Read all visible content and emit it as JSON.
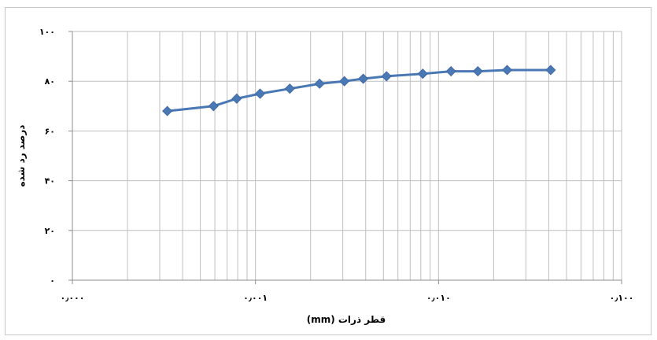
{
  "chart_data": {
    "type": "line",
    "xscale": "log",
    "xlim": [
      0.0001,
      0.1
    ],
    "ylim": [
      0,
      100
    ],
    "ystep": 20,
    "xlabel": "قطر ذرات (mm)",
    "ylabel": "درصد رد شده",
    "x_tick_labels": [
      "۰٫۰۰۰",
      "۰٫۰۰۱",
      "۰٫۰۱۰",
      "۰٫۱۰۰"
    ],
    "y_tick_labels": [
      "۰",
      "۲۰",
      "۴۰",
      "۶۰",
      "۸۰",
      "۱۰۰"
    ],
    "grid": true,
    "legend": "none",
    "series": [
      {
        "color": "#4a78b5",
        "marker": "diamond",
        "x": [
          0.00033,
          0.00059,
          0.00079,
          0.00106,
          0.00154,
          0.00224,
          0.00306,
          0.00388,
          0.0052,
          0.0082,
          0.0117,
          0.0164,
          0.0237,
          0.041
        ],
        "y": [
          68,
          70,
          73,
          75,
          77,
          79,
          80,
          81,
          82,
          83,
          84,
          84,
          84.5,
          84.5
        ]
      }
    ]
  }
}
